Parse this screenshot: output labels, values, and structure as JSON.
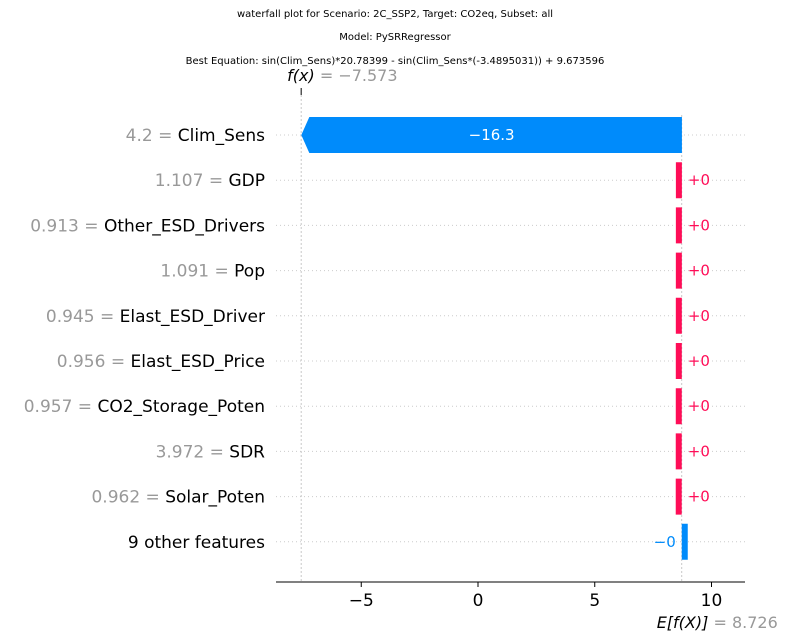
{
  "titles": {
    "line1": "waterfall plot for Scenario: 2C_SSP2, Target: CO2eq, Subset: all",
    "line2": "Model: PySRRegressor",
    "line3": "Best Equation: sin(Clim_Sens)*20.78399 - sin(Clim_Sens*(-3.4895031)) + 9.673596"
  },
  "chart_data": {
    "type": "waterfall",
    "fx_label": "f(x)",
    "fx_value_text": "= −7.573",
    "fx": -7.573,
    "base_label": "E[f(X)]",
    "base_value_text": "= 8.726",
    "base_value": 8.726,
    "xlim": [
      -8.6,
      11.3
    ],
    "xticks": [
      -5,
      0,
      5,
      10
    ],
    "xtick_labels": [
      "−5",
      "0",
      "5",
      "10"
    ],
    "colors": {
      "positive": "#ff0d57",
      "negative": "#008bfb",
      "value_label_gray": "#999999"
    },
    "features": [
      {
        "value": "4.2",
        "name": "Clim_Sens",
        "contribution": -16.3,
        "label": "−16.3"
      },
      {
        "value": "1.107",
        "name": "GDP",
        "contribution": 0.001,
        "label": "+0"
      },
      {
        "value": "0.913",
        "name": "Other_ESD_Drivers",
        "contribution": 0.001,
        "label": "+0"
      },
      {
        "value": "1.091",
        "name": "Pop",
        "contribution": 0.001,
        "label": "+0"
      },
      {
        "value": "0.945",
        "name": "Elast_ESD_Driver",
        "contribution": 0.001,
        "label": "+0"
      },
      {
        "value": "0.956",
        "name": "Elast_ESD_Price",
        "contribution": 0.001,
        "label": "+0"
      },
      {
        "value": "0.957",
        "name": "CO2_Storage_Poten",
        "contribution": 0.001,
        "label": "+0"
      },
      {
        "value": "3.972",
        "name": "SDR",
        "contribution": 0.001,
        "label": "+0"
      },
      {
        "value": "0.962",
        "name": "Solar_Poten",
        "contribution": 0.001,
        "label": "+0"
      },
      {
        "value": "",
        "name": "9 other features",
        "contribution": -0.001,
        "label": "−0"
      }
    ]
  }
}
